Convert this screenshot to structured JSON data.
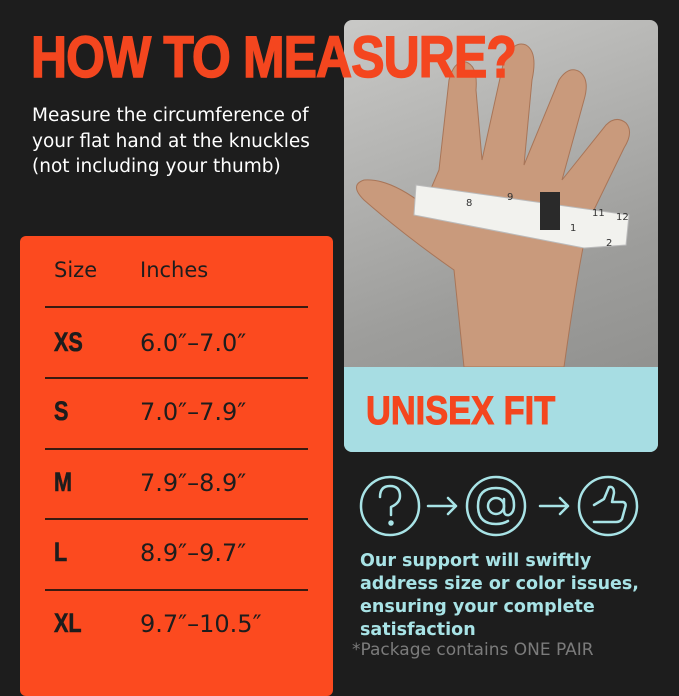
{
  "title": "HOW TO MEASURE?",
  "instructions": "Measure the circumference of your flat hand at the knuckles (not including your thumb)",
  "photo": {
    "badge": "UNISEX FIT",
    "tape_numbers": [
      "8",
      "9",
      "11",
      "12",
      "1",
      "2"
    ]
  },
  "size_table": {
    "headers": [
      "Size",
      "Inches"
    ],
    "rows": [
      {
        "size": "XS",
        "inches": "6.0″–7.0″"
      },
      {
        "size": "S",
        "inches": "7.0″–7.9″"
      },
      {
        "size": "M",
        "inches": "7.9″–8.9″"
      },
      {
        "size": "L",
        "inches": "8.9″–9.7″"
      },
      {
        "size": "XL",
        "inches": "9.7″–10.5″"
      }
    ]
  },
  "support": {
    "icons": [
      "question-icon",
      "arrow-right-icon",
      "at-sign-icon",
      "arrow-right-icon",
      "thumbs-up-icon"
    ],
    "text": "Our support will swiftly address size or color issues, ensuring your complete satisfaction"
  },
  "footnote": "*Package contains ONE PAIR",
  "colors": {
    "accent": "#f4461f",
    "teal": "#a8e3e6",
    "background": "#1d1d1d",
    "band": "#a7dde3"
  }
}
